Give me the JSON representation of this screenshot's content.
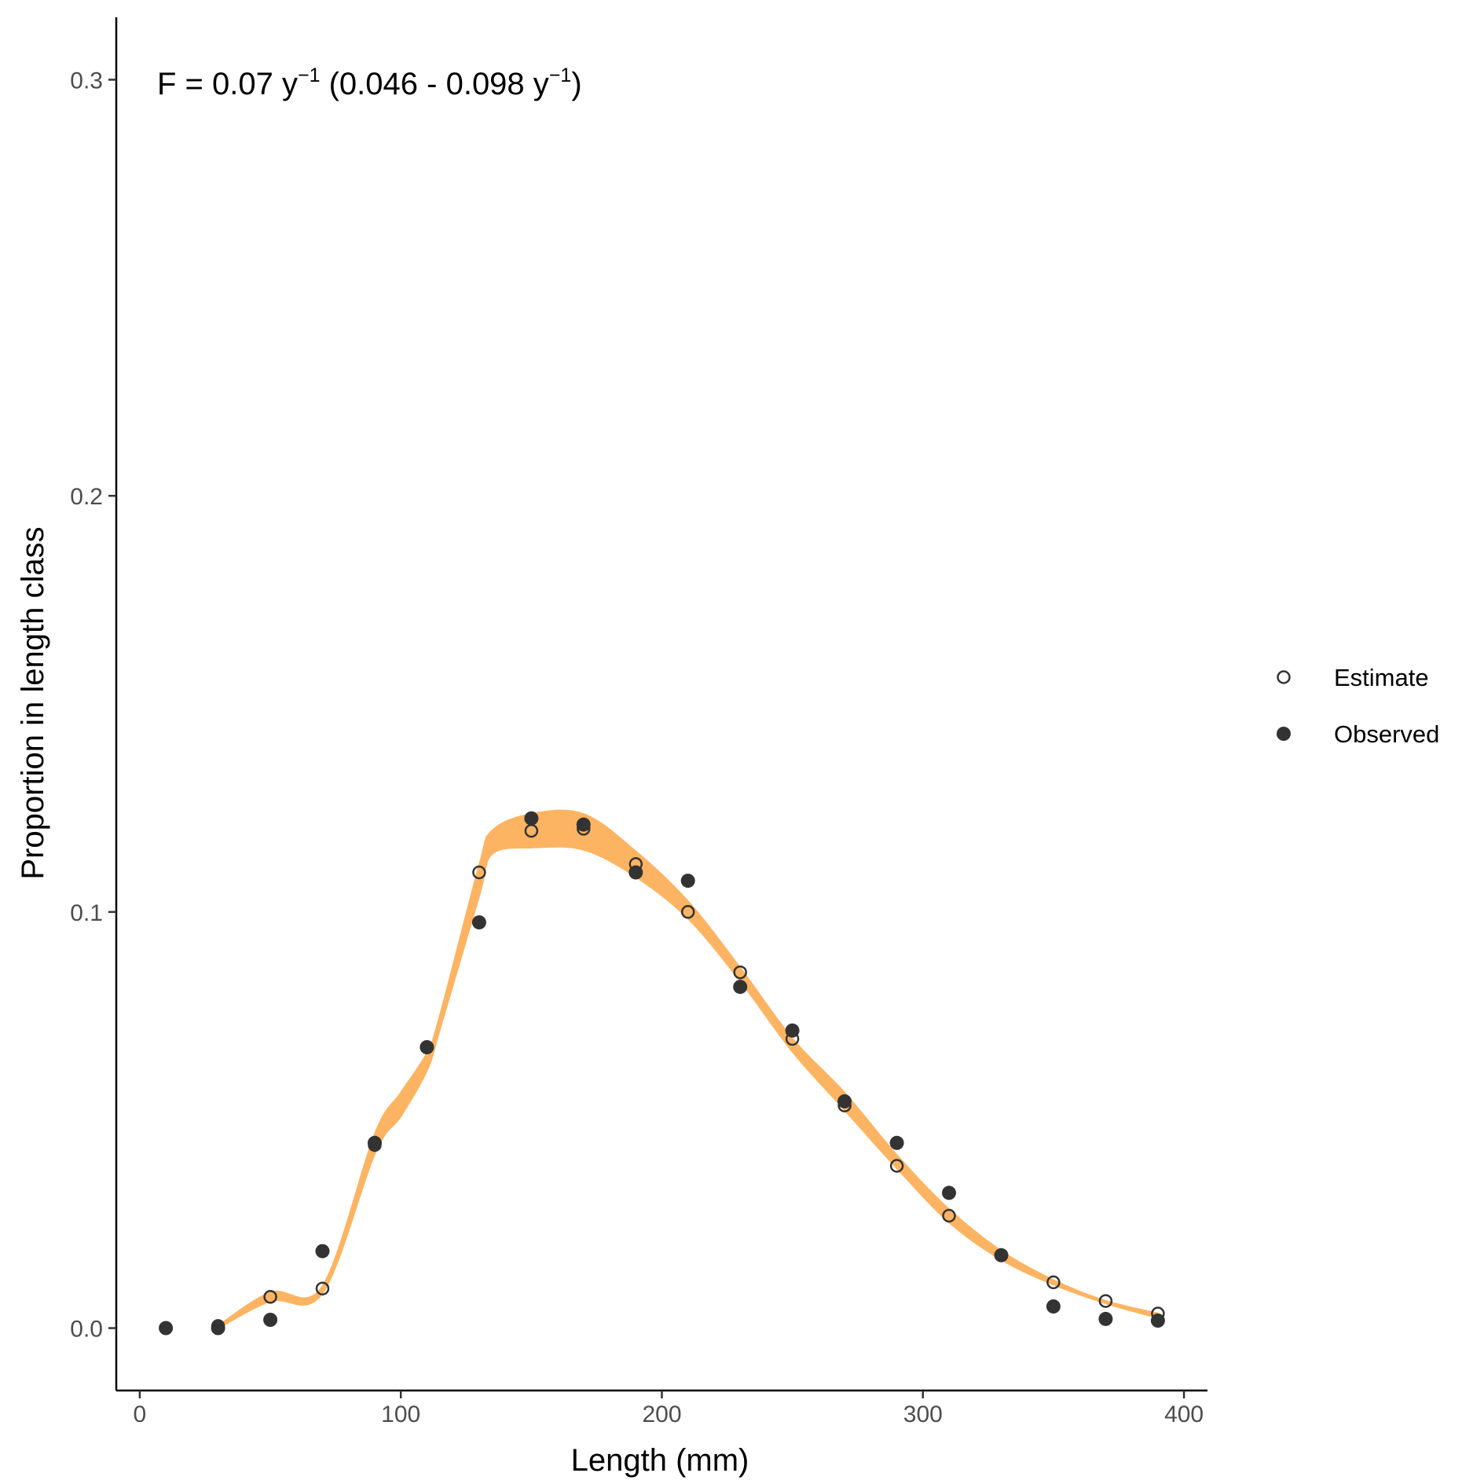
{
  "chart_data": {
    "type": "scatter",
    "xlabel": "Length (mm)",
    "ylabel": "Proportion in length class",
    "xlim": [
      -9,
      409
    ],
    "ylim": [
      -0.015,
      0.315
    ],
    "x_ticks": [
      0,
      100,
      200,
      300,
      400
    ],
    "x_tick_labels": [
      "0",
      "100",
      "200",
      "300",
      "400"
    ],
    "y_ticks": [
      0.0,
      0.1,
      0.2,
      0.3
    ],
    "y_tick_labels": [
      "0.0",
      "0.1",
      "0.2",
      "0.3"
    ],
    "grid": false,
    "legend_position": "right",
    "annotation": {
      "parts": [
        "F = 0.07 y",
        "−1",
        " (0.046 - 0.098 y",
        "−1",
        ")"
      ]
    },
    "band": {
      "color": "#FDB462",
      "x": [
        30,
        50,
        70,
        90,
        100,
        110,
        115,
        130,
        135,
        150,
        170,
        190,
        210,
        230,
        250,
        270,
        290,
        310,
        330,
        350,
        370,
        390
      ],
      "lower": [
        0.0,
        0.0065,
        0.0085,
        0.042,
        0.051,
        0.062,
        0.072,
        0.104,
        0.114,
        0.1155,
        0.115,
        0.1085,
        0.0985,
        0.0835,
        0.0665,
        0.0525,
        0.0385,
        0.0255,
        0.0165,
        0.0105,
        0.006,
        0.0025
      ],
      "upper": [
        0.0005,
        0.0085,
        0.01,
        0.0465,
        0.0565,
        0.066,
        0.075,
        0.111,
        0.1195,
        0.1235,
        0.1235,
        0.1145,
        0.1025,
        0.0865,
        0.0695,
        0.0565,
        0.0415,
        0.0285,
        0.0185,
        0.0115,
        0.0065,
        0.0035
      ]
    },
    "series": [
      {
        "name": "Estimate",
        "marker": "open-circle",
        "x": [
          30,
          50,
          70,
          90,
          110,
          130,
          150,
          170,
          190,
          210,
          230,
          250,
          270,
          290,
          310,
          330,
          350,
          370,
          390
        ],
        "y": [
          0.0005,
          0.0075,
          0.0095,
          0.044,
          0.0675,
          0.1095,
          0.1195,
          0.12,
          0.1115,
          0.1,
          0.0855,
          0.0695,
          0.0535,
          0.039,
          0.027,
          0.0175,
          0.011,
          0.0065,
          0.0035
        ]
      },
      {
        "name": "Observed",
        "marker": "filled-circle",
        "x": [
          10,
          30,
          50,
          70,
          90,
          110,
          130,
          150,
          170,
          190,
          210,
          230,
          250,
          270,
          290,
          310,
          330,
          350,
          370,
          390
        ],
        "y": [
          0.0,
          0.0,
          0.002,
          0.0185,
          0.0445,
          0.0675,
          0.0975,
          0.1225,
          0.121,
          0.1095,
          0.1075,
          0.082,
          0.0715,
          0.0545,
          0.0445,
          0.0325,
          0.0175,
          0.0052,
          0.0022,
          0.0018
        ]
      }
    ]
  }
}
